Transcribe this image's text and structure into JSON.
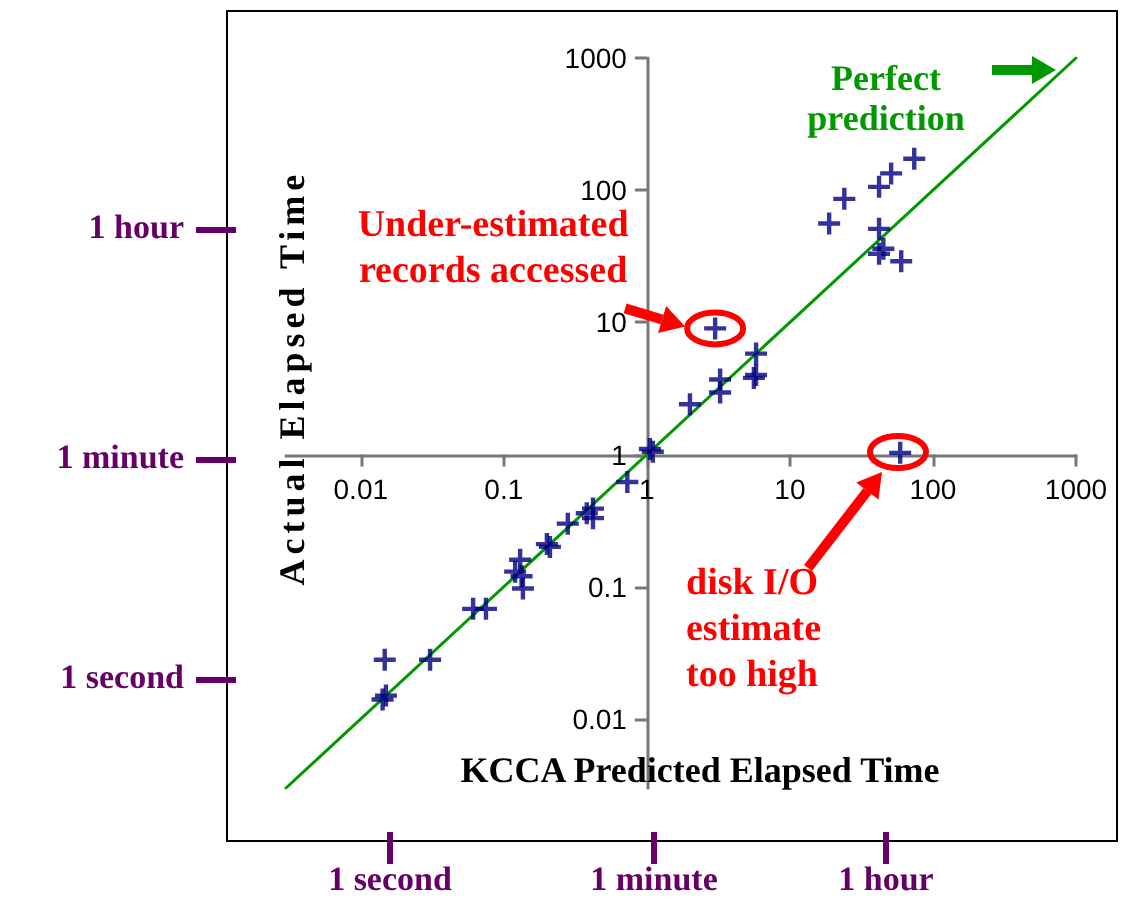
{
  "chart_data": {
    "type": "scatter",
    "xlabel": "KCCA Predicted Elapsed Time",
    "ylabel": "Actual Elapsed Time",
    "log": "xy",
    "grid": false,
    "xlim": [
      0.003,
      1000
    ],
    "ylim": [
      0.003,
      1000
    ],
    "xticks": [
      0.01,
      0.1,
      1,
      10,
      100,
      1000
    ],
    "yticks": [
      0.01,
      0.1,
      1,
      10,
      100,
      1000
    ],
    "series": [
      {
        "color": "#000080",
        "marker": "cross",
        "x": [
          3,
          2,
          3.25,
          3.25,
          5.8,
          5.8,
          5.6,
          18.8,
          24,
          42,
          51,
          74,
          42,
          42,
          45,
          60,
          59,
          1.05,
          1.1,
          0.73,
          0.42,
          0.42,
          0.38,
          0.28,
          0.21,
          0.2,
          0.13,
          0.12,
          0.133,
          0.136,
          0.061,
          0.075,
          0.0147,
          0.0305,
          0.0142,
          0.015
        ],
        "values": [
          9,
          2.4,
          3.7,
          2.95,
          5.8,
          4,
          3.8,
          56,
          86,
          106,
          134,
          173,
          51,
          33,
          36,
          29,
          1.03,
          1.1,
          1.05,
          0.62,
          0.39,
          0.33,
          0.36,
          0.3,
          0.2,
          0.21,
          0.16,
          0.13,
          0.12,
          0.097,
          0.068,
          0.068,
          0.028,
          0.028,
          0.014,
          0.015
        ]
      },
      {
        "type": "line",
        "color": "#009900",
        "marker": "none",
        "line_style": "solid",
        "x": [
          0.003,
          1000
        ],
        "values": [
          0.003,
          1000
        ]
      }
    ],
    "annotations": [
      "Perfect prediction",
      {
        "text": "Under-estimated records accessed",
        "x": 3,
        "y": 9
      },
      "disk I/O estimate too high",
      "1 hour",
      "1 minute",
      "1 second",
      "1 second",
      "1 minute",
      "1 hour"
    ]
  }
}
